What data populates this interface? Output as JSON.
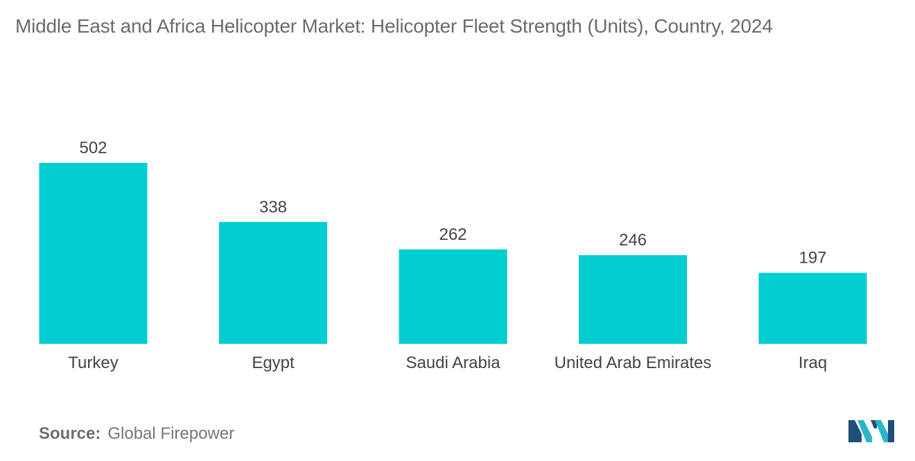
{
  "chart_data": {
    "type": "bar",
    "title": "Middle East and Africa Helicopter Market: Helicopter Fleet Strength (Units), Country, 2024",
    "categories": [
      "Turkey",
      "Egypt",
      "Saudi Arabia",
      "United Arab Emirates",
      "Iraq"
    ],
    "values": [
      502,
      338,
      262,
      246,
      197
    ],
    "xlabel": "",
    "ylabel": "",
    "ylim": [
      0,
      502
    ],
    "grid": false,
    "legend": "none",
    "bar_color": "#00CED1"
  },
  "source": {
    "label": "Source:",
    "value": "Global Firepower"
  },
  "logo": {
    "icon": "mordor-intelligence-logo-icon",
    "colors": [
      "#1f4e79",
      "#2bb5c8"
    ]
  }
}
